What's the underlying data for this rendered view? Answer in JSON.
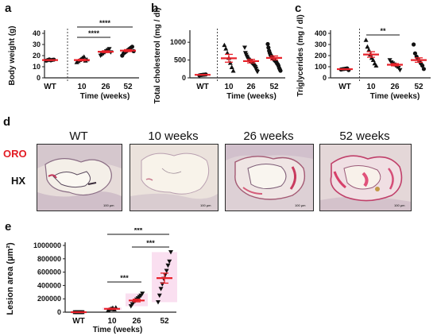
{
  "colors": {
    "mean": "#e8222a",
    "oro_label": "#e31b23",
    "pink_band": "#f7c9e6",
    "axis": "#222222",
    "tissue_pink": "#d89aa8",
    "tissue_purple": "#b6a6c6"
  },
  "panel_d": {
    "label": "d",
    "stain_top": "ORO",
    "stain_bottom": "HX",
    "images": [
      {
        "title": "WT",
        "scale_bar": "100 µm"
      },
      {
        "title": "10 weeks",
        "scale_bar": "100 µm"
      },
      {
        "title": "26 weeks",
        "scale_bar": "100 µm"
      },
      {
        "title": "52 weeks",
        "scale_bar": "100 µm"
      }
    ]
  },
  "chart_data": [
    {
      "panel": "a",
      "type": "scatter",
      "ylabel": "Body weight (g)",
      "xlabel": "Time (weeks)",
      "categories": [
        "WT",
        "10",
        "26",
        "52"
      ],
      "ylim": [
        0,
        40
      ],
      "yticks": [
        0,
        10,
        20,
        30,
        40
      ],
      "markers": [
        "circle",
        "triangle",
        "triangle-down",
        "circle"
      ],
      "points": [
        [
          15.5,
          16.0,
          16.5,
          15.8,
          16.2,
          16.4
        ],
        [
          14,
          15,
          16,
          17,
          18,
          19,
          15.5,
          16.5
        ],
        [
          20,
          21,
          22,
          23,
          24,
          25,
          26,
          23
        ],
        [
          20,
          22,
          23,
          24,
          25,
          26,
          27,
          28,
          24
        ]
      ],
      "means": [
        16,
        16,
        23.5,
        24.5
      ],
      "sem": [
        0.3,
        0.7,
        0.8,
        0.9
      ],
      "significance": [
        {
          "from": 1,
          "to": 2,
          "label": "****"
        },
        {
          "from": 1,
          "to": 3,
          "label": "****"
        }
      ]
    },
    {
      "panel": "b",
      "type": "scatter",
      "ylabel": "Total cholesterol (mg / dl)",
      "xlabel": "Time (weeks)",
      "categories": [
        "WT",
        "10",
        "26",
        "52"
      ],
      "ylim": [
        0,
        1250
      ],
      "yticks": [
        0,
        500,
        1000
      ],
      "markers": [
        "circle",
        "triangle",
        "triangle-down",
        "circle"
      ],
      "points": [
        [
          70,
          80,
          85,
          90,
          95
        ],
        [
          920,
          820,
          700,
          560,
          420,
          300,
          200
        ],
        [
          850,
          700,
          650,
          600,
          560,
          520,
          500,
          480,
          460,
          440,
          420,
          400,
          380,
          350,
          320,
          300,
          260,
          200,
          170
        ],
        [
          950,
          850,
          760,
          700,
          650,
          620,
          600,
          560,
          540,
          520,
          500,
          480,
          460,
          440,
          400,
          380,
          340,
          280,
          240,
          200
        ]
      ],
      "means": [
        85,
        550,
        470,
        560
      ],
      "sem": [
        5,
        110,
        50,
        55
      ],
      "significance": []
    },
    {
      "panel": "c",
      "type": "scatter",
      "ylabel": "Triglycerides (mg / dl)",
      "xlabel": "Time (weeks)",
      "categories": [
        "WT",
        "10",
        "26",
        "52"
      ],
      "ylim": [
        0,
        400
      ],
      "yticks": [
        0,
        100,
        200,
        300,
        400
      ],
      "markers": [
        "circle",
        "triangle",
        "triangle-down",
        "circle"
      ],
      "points": [
        [
          75,
          78,
          80,
          82,
          85,
          70
        ],
        [
          340,
          280,
          250,
          210,
          180,
          160,
          130,
          110
        ],
        [
          160,
          140,
          130,
          120,
          110,
          100,
          90,
          70
        ],
        [
          300,
          220,
          190,
          170,
          150,
          130,
          110,
          80
        ]
      ],
      "means": [
        78,
        210,
        118,
        160
      ],
      "sem": [
        3,
        25,
        10,
        20
      ],
      "significance": [
        {
          "from": 1,
          "to": 2,
          "label": "**"
        }
      ]
    },
    {
      "panel": "e",
      "type": "scatter",
      "ylabel": "Lesion area (µm²)",
      "xlabel": "Time (weeks)",
      "categories": [
        "WT",
        "10",
        "26",
        "52"
      ],
      "ylim": [
        0,
        1000000
      ],
      "yticks": [
        0,
        200000,
        400000,
        600000,
        800000,
        1000000
      ],
      "markers": [
        "square",
        "triangle",
        "triangle-down",
        "triangle-down"
      ],
      "points": [
        [
          0,
          0,
          0,
          0,
          0,
          0
        ],
        [
          30000,
          45000,
          55000,
          65000,
          40000,
          70000
        ],
        [
          90000,
          120000,
          150000,
          170000,
          190000,
          210000,
          230000,
          250000,
          280000
        ],
        [
          150000,
          250000,
          350000,
          420000,
          500000,
          560000,
          620000,
          700000,
          760000,
          900000
        ]
      ],
      "means": [
        0,
        50000,
        175000,
        510000
      ],
      "sem": [
        0,
        8000,
        20000,
        75000
      ],
      "significance": [
        {
          "from": 1,
          "to": 2,
          "label": "***"
        },
        {
          "from": 2,
          "to": 3,
          "label": "***"
        },
        {
          "from": 1,
          "to": 3,
          "label": "***"
        }
      ]
    }
  ]
}
